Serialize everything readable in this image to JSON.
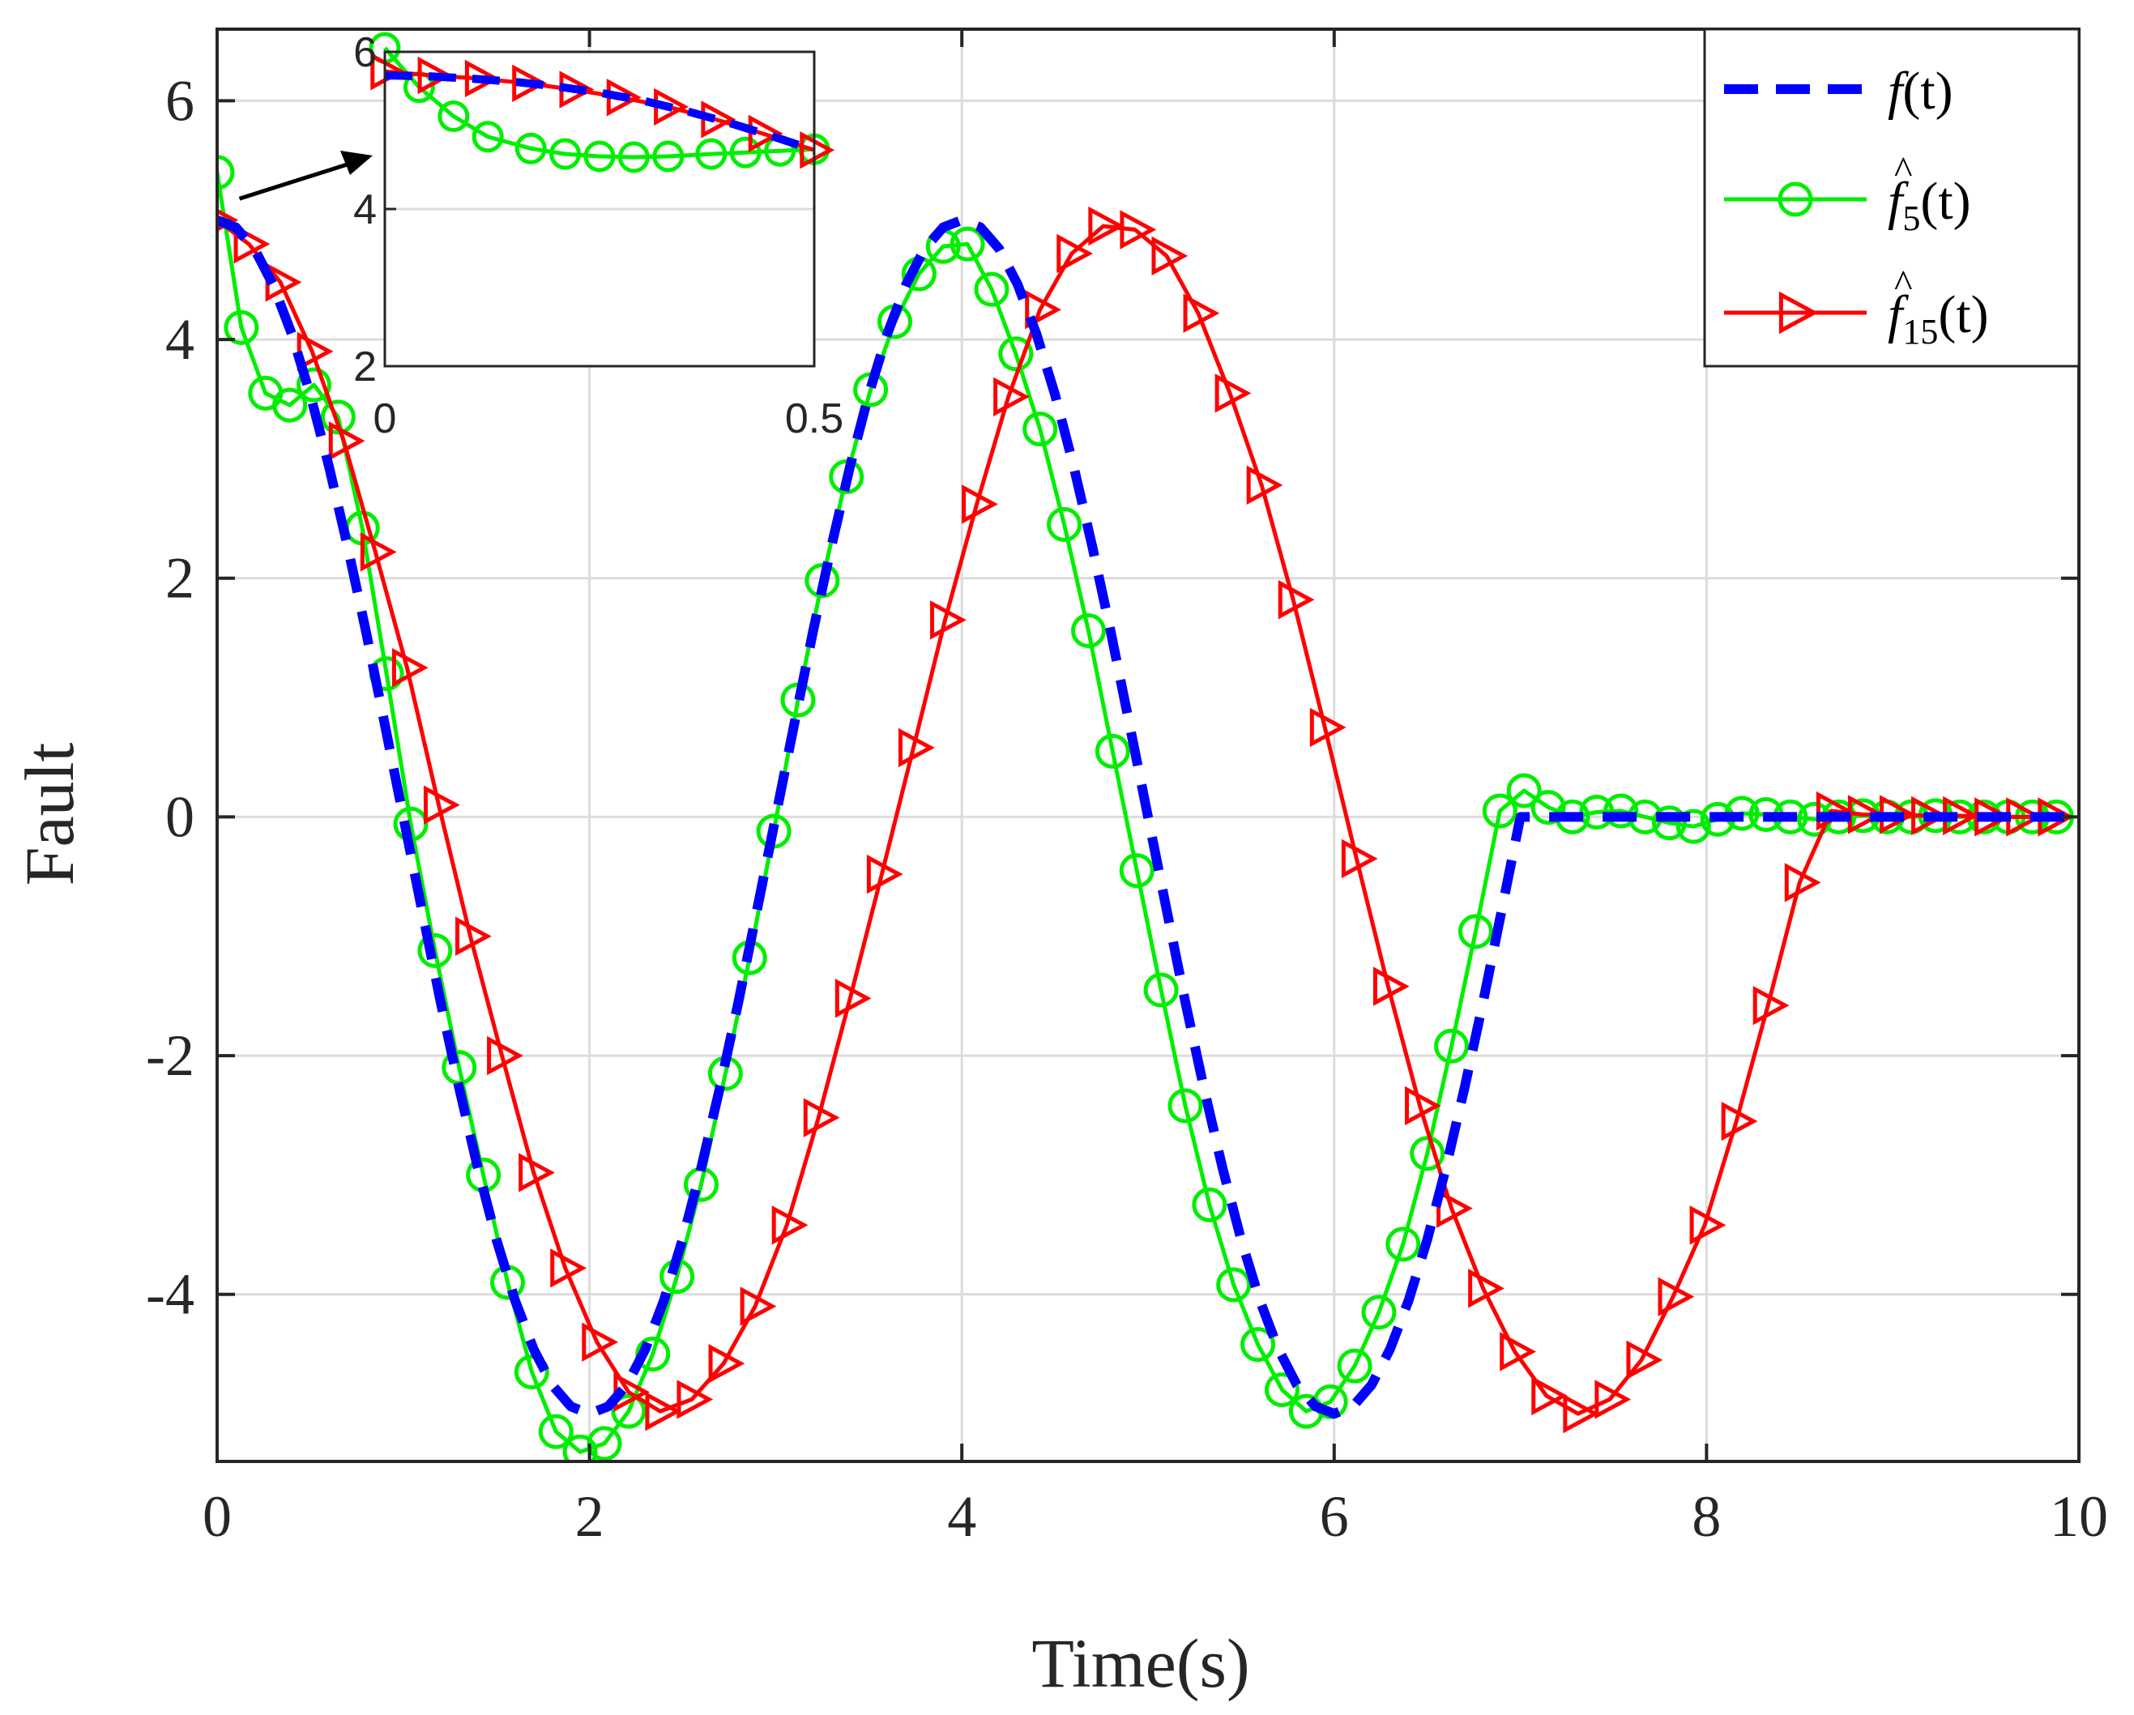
{
  "chart_data": {
    "type": "line",
    "title": "",
    "xlabel": "Time(s)",
    "ylabel": "Fault",
    "xlim": [
      0,
      10
    ],
    "ylim": [
      -5.4,
      6.6
    ],
    "xticks": [
      0,
      2,
      4,
      6,
      8,
      10
    ],
    "xtick_labels": [
      "0",
      "2",
      "4",
      "6",
      "8",
      "10"
    ],
    "yticks": [
      -4,
      -2,
      0,
      2,
      4,
      6
    ],
    "ytick_labels": [
      "-4",
      "-2",
      "0",
      "2",
      "4",
      "6"
    ],
    "grid": true,
    "legend_position": "top-right",
    "colors": {
      "f": "#0000ff",
      "f5": "#00ee00",
      "f15": "#ff0000",
      "axis": "#262626",
      "grid": "#dcdcdc"
    },
    "series": [
      {
        "name": "f(t)",
        "legend": {
          "base": "f",
          "sub": "",
          "args": "(t)",
          "hat": false
        },
        "style": "dashed",
        "x": [
          0,
          0.1,
          0.2,
          0.3,
          0.4,
          0.5,
          0.6,
          0.7,
          0.8,
          0.9,
          1.0,
          1.1,
          1.2,
          1.3,
          1.4,
          1.5,
          1.6,
          1.7,
          1.8,
          1.9,
          2.0,
          2.1,
          2.2,
          2.3,
          2.4,
          2.5,
          2.6,
          2.7,
          2.8,
          2.9,
          3.0,
          3.1,
          3.2,
          3.3,
          3.4,
          3.5,
          3.6,
          3.7,
          3.8,
          3.9,
          4.0,
          4.1,
          4.2,
          4.3,
          4.4,
          4.5,
          4.6,
          4.7,
          4.8,
          4.9,
          5.0,
          5.1,
          5.2,
          5.3,
          5.4,
          5.5,
          5.6,
          5.7,
          5.8,
          5.9,
          6.0,
          6.1,
          6.2,
          6.3,
          6.4,
          6.5,
          6.6,
          6.7,
          6.8,
          6.9,
          7.0,
          7.5,
          8.0,
          8.5,
          9.0,
          9.5,
          10.0
        ],
        "y": [
          5.0,
          4.94,
          4.76,
          4.46,
          4.05,
          3.54,
          2.94,
          2.27,
          1.55,
          0.78,
          0.0,
          -0.78,
          -1.55,
          -2.27,
          -2.94,
          -3.54,
          -4.05,
          -4.46,
          -4.76,
          -4.94,
          -5.0,
          -4.94,
          -4.76,
          -4.46,
          -4.05,
          -3.54,
          -2.94,
          -2.27,
          -1.55,
          -0.78,
          0.0,
          0.78,
          1.55,
          2.27,
          2.94,
          3.54,
          4.05,
          4.46,
          4.76,
          4.94,
          5.0,
          4.94,
          4.76,
          4.46,
          4.05,
          3.54,
          2.94,
          2.27,
          1.55,
          0.78,
          0.0,
          -0.78,
          -1.55,
          -2.27,
          -2.94,
          -3.54,
          -4.05,
          -4.46,
          -4.76,
          -4.94,
          -5.0,
          -4.94,
          -4.76,
          -4.46,
          -4.05,
          -3.54,
          -2.94,
          -2.27,
          -1.55,
          -0.78,
          0.0,
          0.0,
          0.0,
          0.0,
          0.0,
          0.0,
          0.0
        ]
      },
      {
        "name": "f5(t)",
        "legend": {
          "base": "f",
          "sub": "5",
          "args": "(t)",
          "hat": true
        },
        "style": "solid-circle",
        "x": [
          0.0,
          0.13,
          0.26,
          0.39,
          0.52,
          0.65,
          0.78,
          0.91,
          1.04,
          1.17,
          1.3,
          1.43,
          1.56,
          1.69,
          1.82,
          1.95,
          2.08,
          2.21,
          2.34,
          2.47,
          2.6,
          2.73,
          2.86,
          2.99,
          3.12,
          3.25,
          3.38,
          3.51,
          3.64,
          3.77,
          3.9,
          4.03,
          4.16,
          4.29,
          4.42,
          4.55,
          4.68,
          4.81,
          4.94,
          5.07,
          5.2,
          5.33,
          5.46,
          5.59,
          5.72,
          5.85,
          5.98,
          6.11,
          6.24,
          6.37,
          6.5,
          6.63,
          6.76,
          6.89,
          7.02,
          7.15,
          7.28,
          7.41,
          7.54,
          7.67,
          7.8,
          7.93,
          8.06,
          8.19,
          8.32,
          8.45,
          8.58,
          8.71,
          8.84,
          8.97,
          9.1,
          9.23,
          9.36,
          9.49,
          9.62,
          9.75,
          9.88
        ],
        "y": [
          5.4,
          4.1,
          3.55,
          3.45,
          3.62,
          3.35,
          2.42,
          1.2,
          -0.06,
          -1.12,
          -2.1,
          -3.0,
          -3.9,
          -4.65,
          -5.15,
          -5.32,
          -5.25,
          -4.98,
          -4.5,
          -3.85,
          -3.08,
          -2.15,
          -1.18,
          -0.12,
          0.98,
          1.98,
          2.85,
          3.58,
          4.15,
          4.55,
          4.78,
          4.8,
          4.42,
          3.88,
          3.25,
          2.45,
          1.56,
          0.55,
          -0.45,
          -1.45,
          -2.42,
          -3.25,
          -3.92,
          -4.42,
          -4.8,
          -4.98,
          -4.9,
          -4.6,
          -4.15,
          -3.58,
          -2.82,
          -1.92,
          -0.96,
          0.05,
          0.22,
          0.08,
          0.0,
          0.04,
          0.05,
          0.0,
          -0.05,
          -0.08,
          -0.02,
          0.03,
          0.02,
          0.0,
          -0.02,
          0.0,
          0.01,
          0.0,
          0.0,
          0.01,
          0.0,
          0.0,
          0.0,
          0.0,
          0.0
        ]
      },
      {
        "name": "f15(t)",
        "legend": {
          "base": "f",
          "sub": "15",
          "args": "(t)",
          "hat": true
        },
        "style": "solid-triangle",
        "x": [
          0.0,
          0.17,
          0.34,
          0.51,
          0.68,
          0.85,
          1.02,
          1.19,
          1.36,
          1.53,
          1.7,
          1.87,
          2.04,
          2.21,
          2.38,
          2.55,
          2.72,
          2.89,
          3.06,
          3.23,
          3.4,
          3.57,
          3.74,
          3.91,
          4.08,
          4.25,
          4.42,
          4.59,
          4.76,
          4.93,
          5.1,
          5.27,
          5.44,
          5.61,
          5.78,
          5.95,
          6.12,
          6.29,
          6.46,
          6.63,
          6.8,
          6.97,
          7.14,
          7.31,
          7.48,
          7.65,
          7.82,
          7.99,
          8.16,
          8.33,
          8.5,
          8.67,
          8.84,
          9.01,
          9.18,
          9.35,
          9.52,
          9.69,
          9.86
        ],
        "y": [
          5.0,
          4.8,
          4.48,
          3.9,
          3.15,
          2.22,
          1.25,
          0.1,
          -1.0,
          -2.0,
          -2.98,
          -3.78,
          -4.4,
          -4.82,
          -4.98,
          -4.88,
          -4.58,
          -4.1,
          -3.42,
          -2.52,
          -1.52,
          -0.48,
          0.58,
          1.65,
          2.62,
          3.52,
          4.25,
          4.72,
          4.95,
          4.92,
          4.7,
          4.22,
          3.55,
          2.78,
          1.82,
          0.75,
          -0.35,
          -1.42,
          -2.42,
          -3.28,
          -3.95,
          -4.48,
          -4.85,
          -5.0,
          -4.88,
          -4.55,
          -4.02,
          -3.42,
          -2.55,
          -1.58,
          -0.55,
          0.05,
          0.02,
          0.02,
          0.01,
          0.01,
          0.0,
          0.0,
          0.0
        ]
      }
    ],
    "inset": {
      "xlim": [
        0,
        0.5
      ],
      "ylim": [
        2,
        6
      ],
      "xticks": [
        0,
        0.5
      ],
      "xtick_labels": [
        "0",
        "0.5"
      ],
      "yticks": [
        2,
        4,
        6
      ],
      "ytick_labels": [
        "2",
        "4",
        "6"
      ],
      "f": {
        "x": [
          0,
          0.05,
          0.1,
          0.15,
          0.2,
          0.25,
          0.3,
          0.35,
          0.4,
          0.45,
          0.5
        ],
        "y": [
          5.7,
          5.69,
          5.66,
          5.62,
          5.56,
          5.48,
          5.38,
          5.25,
          5.1,
          4.93,
          4.75
        ]
      },
      "f5": {
        "x": [
          0,
          0.04,
          0.08,
          0.12,
          0.17,
          0.21,
          0.25,
          0.29,
          0.33,
          0.38,
          0.42,
          0.46,
          0.5
        ],
        "y": [
          6.05,
          5.55,
          5.18,
          4.92,
          4.77,
          4.7,
          4.67,
          4.66,
          4.67,
          4.7,
          4.72,
          4.74,
          4.76
        ]
      },
      "f15": {
        "x": [
          0,
          0.055,
          0.11,
          0.165,
          0.22,
          0.275,
          0.33,
          0.385,
          0.44,
          0.5
        ],
        "y": [
          5.75,
          5.7,
          5.66,
          5.6,
          5.52,
          5.42,
          5.3,
          5.14,
          4.96,
          4.75
        ]
      }
    }
  }
}
